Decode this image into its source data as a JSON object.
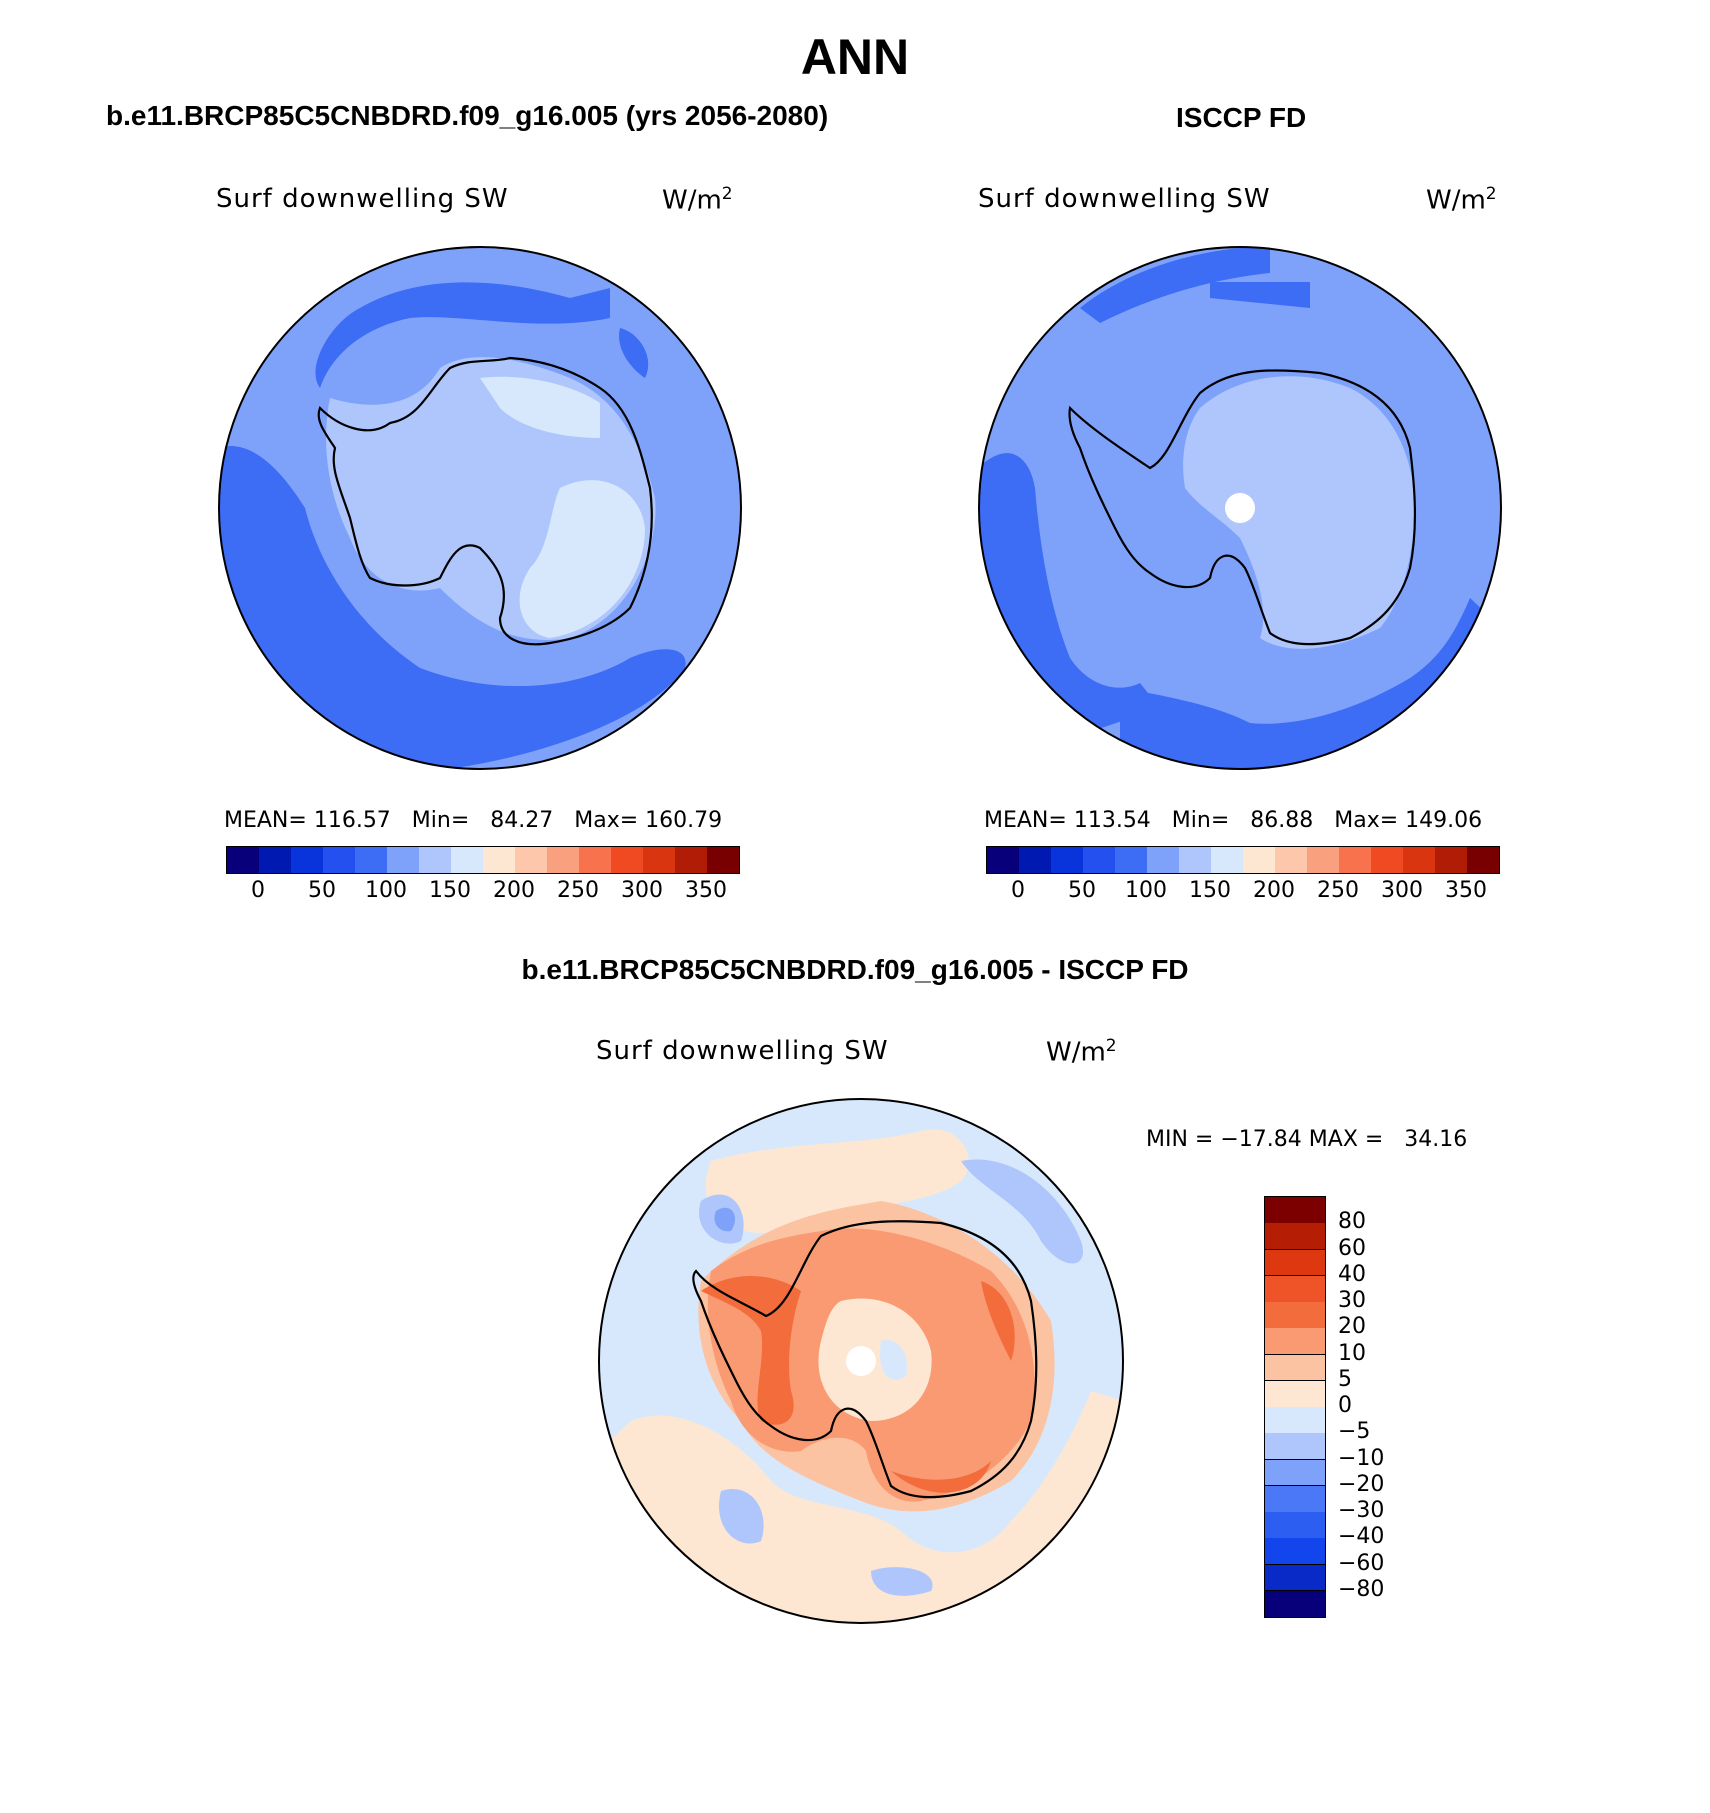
{
  "page": {
    "title": "ANN"
  },
  "colors": {
    "abs_scale": [
      "#08007b",
      "#0019b0",
      "#0a34db",
      "#2450f0",
      "#3d6cf5",
      "#7ea2fa",
      "#aec6fc",
      "#d7e8fc",
      "#fde7d2",
      "#fcc7aa",
      "#f9a07e",
      "#f7724d",
      "#f04a22",
      "#d93510",
      "#b01c06",
      "#790000"
    ],
    "diff_scale": [
      "#08007b",
      "#0a2ac7",
      "#1245eb",
      "#2d5ef2",
      "#4a78f6",
      "#7ea2fa",
      "#aec6fc",
      "#d7e8fc",
      "#fde7d2",
      "#fcc3a2",
      "#f99a72",
      "#f36c3c",
      "#ee5428",
      "#dd3810",
      "#b51d05",
      "#7d0000"
    ],
    "coastline": "#000000",
    "pole_mask": "#ffffff"
  },
  "panels": {
    "model": {
      "header": "b.e11.BRCP85C5CNBDRD.f09_g16.005 (yrs 2056-2080)",
      "variable": "Surf downwelling SW",
      "units_base": "W/m",
      "units_exp": "2",
      "stats": {
        "mean_label": "MEAN=",
        "mean": "116.57",
        "min_label": "Min=",
        "min": "84.27",
        "max_label": "Max=",
        "max": "160.79"
      }
    },
    "obs": {
      "header": "ISCCP FD",
      "variable": "Surf downwelling SW",
      "units_base": "W/m",
      "units_exp": "2",
      "stats": {
        "mean_label": "MEAN=",
        "mean": "113.54",
        "min_label": "Min=",
        "min": "86.88",
        "max_label": "Max=",
        "max": "149.06"
      }
    },
    "diff": {
      "header": "b.e11.BRCP85C5CNBDRD.f09_g16.005 - ISCCP FD",
      "variable": "Surf downwelling SW",
      "units_base": "W/m",
      "units_exp": "2",
      "stats": {
        "min_label": "MIN =",
        "min": "−17.84",
        "max_label": "MAX =",
        "max": "34.16"
      }
    }
  },
  "abs_colorbar_ticks": [
    "0",
    "50",
    "100",
    "150",
    "200",
    "250",
    "300",
    "350"
  ],
  "diff_colorbar_ticks": [
    "80",
    "60",
    "40",
    "30",
    "20",
    "10",
    "5",
    "0",
    "−5",
    "−10",
    "−20",
    "−30",
    "−40",
    "−60",
    "−80"
  ]
}
